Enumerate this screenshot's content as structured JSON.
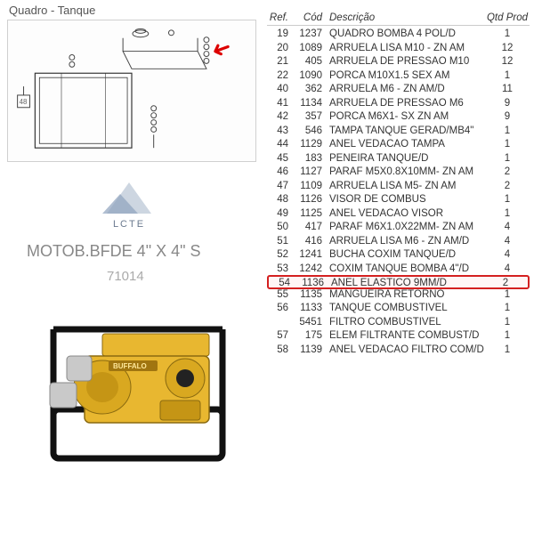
{
  "header": {
    "title": "Quadro - Tanque"
  },
  "logo": {
    "text": "LCTE"
  },
  "product": {
    "title": "MOTOB.BFDE 4\" X 4\" S",
    "code": "71014"
  },
  "table": {
    "headers": {
      "ref": "Ref.",
      "cod": "Cód",
      "desc": "Descrição",
      "qtd": "Qtd Prod"
    },
    "highlight_index": 18,
    "highlight_color": "#d42020",
    "rows": [
      {
        "ref": "19",
        "cod": "1237",
        "desc": "QUADRO BOMBA 4 POL/D",
        "qtd": "1"
      },
      {
        "ref": "20",
        "cod": "1089",
        "desc": "ARRUELA LISA M10 - ZN AM",
        "qtd": "12"
      },
      {
        "ref": "21",
        "cod": "405",
        "desc": "ARRUELA DE PRESSAO M10",
        "qtd": "12"
      },
      {
        "ref": "22",
        "cod": "1090",
        "desc": "PORCA M10X1.5 SEX AM",
        "qtd": "1"
      },
      {
        "ref": "40",
        "cod": "362",
        "desc": "ARRUELA M6 - ZN AM/D",
        "qtd": "11"
      },
      {
        "ref": "41",
        "cod": "1134",
        "desc": "ARRUELA DE PRESSAO M6",
        "qtd": "9"
      },
      {
        "ref": "42",
        "cod": "357",
        "desc": "PORCA M6X1- SX ZN AM",
        "qtd": "9"
      },
      {
        "ref": "43",
        "cod": "546",
        "desc": "TAMPA TANQUE GERAD/MB4\"",
        "qtd": "1"
      },
      {
        "ref": "44",
        "cod": "1129",
        "desc": "ANEL VEDACAO TAMPA",
        "qtd": "1"
      },
      {
        "ref": "45",
        "cod": "183",
        "desc": "PENEIRA TANQUE/D",
        "qtd": "1"
      },
      {
        "ref": "46",
        "cod": "1127",
        "desc": "PARAF M5X0.8X10MM- ZN AM",
        "qtd": "2"
      },
      {
        "ref": "47",
        "cod": "1109",
        "desc": "ARRUELA LISA M5- ZN AM",
        "qtd": "2"
      },
      {
        "ref": "48",
        "cod": "1126",
        "desc": "VISOR DE COMBUS",
        "qtd": "1"
      },
      {
        "ref": "49",
        "cod": "1125",
        "desc": "ANEL VEDACAO VISOR",
        "qtd": "1"
      },
      {
        "ref": "50",
        "cod": "417",
        "desc": "PARAF M6X1.0X22MM- ZN AM",
        "qtd": "4"
      },
      {
        "ref": "51",
        "cod": "416",
        "desc": "ARRUELA LISA M6 - ZN AM/D",
        "qtd": "4"
      },
      {
        "ref": "52",
        "cod": "1241",
        "desc": "BUCHA COXIM TANQUE/D",
        "qtd": "4"
      },
      {
        "ref": "53",
        "cod": "1242",
        "desc": "COXIM TANQUE BOMBA 4\"/D",
        "qtd": "4"
      },
      {
        "ref": "54",
        "cod": "1136",
        "desc": "ANEL ELASTICO 9MM/D",
        "qtd": "2"
      },
      {
        "ref": "55",
        "cod": "1135",
        "desc": "MANGUEIRA RETORNO",
        "qtd": "1"
      },
      {
        "ref": "56",
        "cod": "1133",
        "desc": "TANQUE COMBUSTIVEL",
        "qtd": "1"
      },
      {
        "ref": "",
        "cod": "5451",
        "desc": "FILTRO COMBUSTIVEL",
        "qtd": "1"
      },
      {
        "ref": "57",
        "cod": "175",
        "desc": "ELEM FILTRANTE COMBUST/D",
        "qtd": "1"
      },
      {
        "ref": "58",
        "cod": "1139",
        "desc": "ANEL VEDACAO FILTRO COM/D",
        "qtd": "1"
      }
    ]
  }
}
